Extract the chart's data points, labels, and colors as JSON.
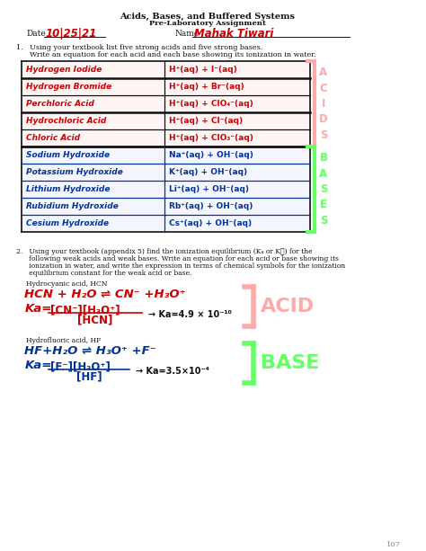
{
  "bg_color": "#ffffff",
  "title1": "Acids, Bases, and Buffered Systems",
  "title2": "Pre-Laboratory Assignment",
  "date_label": "Date",
  "date_value": "10|25|21",
  "name_label": "Name",
  "name_value": "Mahak Tiwari",
  "q1_text1": "1.   Using your textbook list five strong acids and five strong bases.",
  "q1_text2": "      Write an equation for each acid and each base showing its ionization in water.",
  "acids": [
    [
      "Hydrogen Iodide",
      "H⁺(aq) + I⁻(aq)"
    ],
    [
      "Hydrogen Bromide",
      "H⁺(aq) + Br⁻(aq)"
    ],
    [
      "Perchloric Acid",
      "H⁺(aq) + ClO₄⁻(aq)"
    ],
    [
      "Hydrochloric Acid",
      "H⁺(aq) + Cl⁻(aq)"
    ],
    [
      "Chloric Acid",
      "H⁺(aq) + ClO₃⁻(aq)"
    ]
  ],
  "bases": [
    [
      "Sodium Hydroxide",
      "Na⁺(aq) + OH⁻(aq)"
    ],
    [
      "Potassium Hydroxide",
      "K⁺(aq) + OH⁻(aq)"
    ],
    [
      "Lithium Hydroxide",
      "Li⁺(aq) + OH⁻(aq)"
    ],
    [
      "Rubidium Hydroxide",
      "Rb⁺(aq) + OH⁻(aq)"
    ],
    [
      "Cesium Hydroxide",
      "Cs⁺(aq) + OH⁻(aq)"
    ]
  ],
  "q2_text1": "2.   Using your textbook (appendix 5) find the ionization equilibrium (Kₐ or K၂) for the",
  "q2_text2": "      following weak acids and weak bases. Write an equation for each acid or base showing its",
  "q2_text3": "      ionization in water, and write the expression in terms of chemical symbols for the ionization",
  "q2_text4": "      equilibrium constant for the weak acid or base.",
  "hcn_label": "Hydrocyanic acid, HCN",
  "hcn_eq": "HCN + H₂O ⇌ CN⁻ +H₃O⁺",
  "hcn_num": "[CN⁻][H₃O⁺]",
  "hcn_denom": "[HCN]",
  "hcn_val": "→ Ka=4.9 × 10⁻¹⁰",
  "hf_label": "Hydrofluoric acid, HF",
  "hf_eq": "HF+H₂O ⇌ H₃O⁺ +F⁻",
  "hf_num": "[F⁻][H₃O⁺]",
  "hf_denom": "[HF]",
  "hf_val": "→ Ka=3.5×10⁻⁴",
  "acid_label": "ACID",
  "base_label": "BASE",
  "page_num": "107",
  "RED": "#cc0000",
  "BLUE": "#003399",
  "GREEN": "#00cc00",
  "PINK": "#ffaaaa",
  "LGREEN": "#66ff66",
  "BLACK": "#111111",
  "GRAY": "#888888"
}
